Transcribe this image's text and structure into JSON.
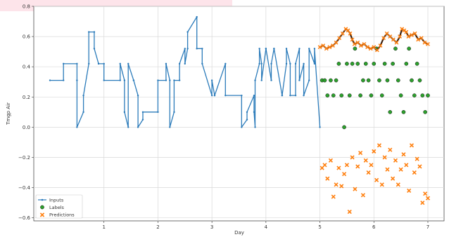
{
  "chart_data": {
    "type": "scatter",
    "xlabel": "Day",
    "ylabel": "Tmgp Air",
    "xlim": [
      -0.3,
      7.3
    ],
    "ylim": [
      -0.62,
      0.8
    ],
    "xticks": [
      1,
      2,
      3,
      4,
      5,
      6,
      7
    ],
    "yticks": [
      0.8,
      0.6,
      0.4,
      0.2,
      0.0,
      -0.2,
      -0.4,
      -0.6
    ],
    "ytick_labels": [
      "0.8",
      "0.6",
      "0.4",
      "0.2",
      "0.0",
      "−0.2",
      "−0.4",
      "−0.6"
    ],
    "grid": true,
    "legend_position": "bottom-left",
    "colors": {
      "inputs": "#2b7bba",
      "labels": "#2ca02c",
      "predictions": "#ff7f0e",
      "grid": "#d9d9d9"
    },
    "series": [
      {
        "name": "Inputs",
        "type": "line",
        "x": [
          0.0,
          0.25,
          0.25,
          0.5,
          0.5,
          0.5,
          0.62,
          0.62,
          0.72,
          0.72,
          0.82,
          0.82,
          0.9,
          0.9,
          1.0,
          1.0,
          1.3,
          1.3,
          1.38,
          1.38,
          1.45,
          1.45,
          1.55,
          1.55,
          1.63,
          1.63,
          1.72,
          1.72,
          2.0,
          2.0,
          2.15,
          2.15,
          2.22,
          2.22,
          2.3,
          2.3,
          2.4,
          2.4,
          2.5,
          2.5,
          2.55,
          2.55,
          2.72,
          2.72,
          2.82,
          2.82,
          3.0,
          3.0,
          3.05,
          3.05,
          3.25,
          3.25,
          3.55,
          3.55,
          3.65,
          3.65,
          3.78,
          3.78,
          3.8,
          3.8,
          3.88,
          3.88,
          3.92,
          3.92,
          4.0,
          4.0,
          4.1,
          4.1,
          4.15,
          4.15,
          4.3,
          4.3,
          4.38,
          4.38,
          4.45,
          4.45,
          4.55,
          4.55,
          4.62,
          4.62,
          4.7,
          4.7,
          4.8,
          4.8,
          4.9,
          4.9,
          5.0
        ],
        "y": [
          0.31,
          0.31,
          0.42,
          0.42,
          0.31,
          0.0,
          0.1,
          0.21,
          0.42,
          0.63,
          0.63,
          0.52,
          0.42,
          0.42,
          0.42,
          0.31,
          0.31,
          0.42,
          0.31,
          0.1,
          0.0,
          0.42,
          0.31,
          0.31,
          0.21,
          0.0,
          0.05,
          0.1,
          0.1,
          0.31,
          0.31,
          0.42,
          0.31,
          0.0,
          0.1,
          0.31,
          0.31,
          0.42,
          0.52,
          0.42,
          0.52,
          0.63,
          0.73,
          0.52,
          0.52,
          0.42,
          0.21,
          0.31,
          0.21,
          0.21,
          0.42,
          0.21,
          0.21,
          0.0,
          0.05,
          0.1,
          0.21,
          0.1,
          0.0,
          0.31,
          0.42,
          0.52,
          0.42,
          0.31,
          0.52,
          0.52,
          0.31,
          0.42,
          0.52,
          0.52,
          0.21,
          0.21,
          0.42,
          0.52,
          0.42,
          0.21,
          0.21,
          0.42,
          0.52,
          0.31,
          0.42,
          0.21,
          0.31,
          0.52,
          0.42,
          0.52,
          0.0
        ]
      },
      {
        "name": "Labels",
        "type": "scatter",
        "x": [
          5.04,
          5.09,
          5.14,
          5.2,
          5.25,
          5.3,
          5.35,
          5.4,
          5.45,
          5.5,
          5.55,
          5.6,
          5.65,
          5.7,
          5.75,
          5.8,
          5.85,
          5.9,
          5.95,
          6.0,
          6.05,
          6.1,
          6.15,
          6.2,
          6.25,
          6.3,
          6.35,
          6.4,
          6.45,
          6.5,
          6.55,
          6.6,
          6.65,
          6.7,
          6.75,
          6.8,
          6.85,
          6.9,
          6.95,
          7.0
        ],
        "y": [
          0.31,
          0.31,
          0.21,
          0.31,
          0.21,
          0.31,
          0.42,
          0.21,
          0.0,
          0.42,
          0.21,
          0.42,
          0.52,
          0.42,
          0.21,
          0.31,
          0.42,
          0.31,
          0.21,
          0.42,
          0.52,
          0.31,
          0.21,
          0.42,
          0.31,
          0.1,
          0.42,
          0.52,
          0.31,
          0.21,
          0.1,
          0.42,
          0.52,
          0.31,
          0.21,
          0.42,
          0.31,
          0.21,
          0.1,
          0.21
        ]
      },
      {
        "name": "Predictions",
        "type": "scatter",
        "x": [
          5.04,
          5.09,
          5.14,
          5.2,
          5.25,
          5.3,
          5.35,
          5.4,
          5.45,
          5.5,
          5.55,
          5.6,
          5.65,
          5.7,
          5.75,
          5.8,
          5.85,
          5.9,
          5.95,
          6.0,
          6.05,
          6.1,
          6.15,
          6.2,
          6.25,
          6.3,
          6.35,
          6.4,
          6.45,
          6.5,
          6.55,
          6.6,
          6.65,
          6.7,
          6.75,
          6.8,
          6.85,
          6.9,
          6.95,
          7.0
        ],
        "y": [
          -0.27,
          -0.25,
          -0.34,
          -0.22,
          -0.46,
          -0.38,
          -0.27,
          -0.39,
          -0.31,
          -0.25,
          -0.56,
          -0.2,
          -0.41,
          -0.26,
          -0.17,
          -0.45,
          -0.22,
          -0.3,
          -0.25,
          -0.16,
          -0.35,
          -0.12,
          -0.38,
          -0.2,
          -0.28,
          -0.15,
          -0.34,
          -0.22,
          -0.38,
          -0.28,
          -0.18,
          -0.25,
          -0.42,
          -0.12,
          -0.3,
          -0.21,
          -0.26,
          -0.5,
          -0.44,
          -0.47
        ]
      }
    ],
    "prediction_trace": {
      "x": [
        5.0,
        5.06,
        5.12,
        5.18,
        5.24,
        5.3,
        5.36,
        5.42,
        5.48,
        5.52,
        5.56,
        5.6,
        5.64,
        5.7,
        5.76,
        5.82,
        5.88,
        5.94,
        6.0,
        6.06,
        6.12,
        6.18,
        6.24,
        6.3,
        6.36,
        6.42,
        6.48,
        6.52,
        6.56,
        6.6,
        6.64,
        6.7,
        6.76,
        6.82,
        6.88,
        6.94,
        7.0
      ],
      "y": [
        0.53,
        0.54,
        0.52,
        0.53,
        0.54,
        0.56,
        0.59,
        0.62,
        0.65,
        0.64,
        0.62,
        0.58,
        0.55,
        0.56,
        0.54,
        0.55,
        0.53,
        0.52,
        0.53,
        0.51,
        0.54,
        0.59,
        0.62,
        0.6,
        0.58,
        0.56,
        0.6,
        0.65,
        0.64,
        0.63,
        0.6,
        0.61,
        0.62,
        0.58,
        0.59,
        0.56,
        0.55
      ]
    }
  }
}
